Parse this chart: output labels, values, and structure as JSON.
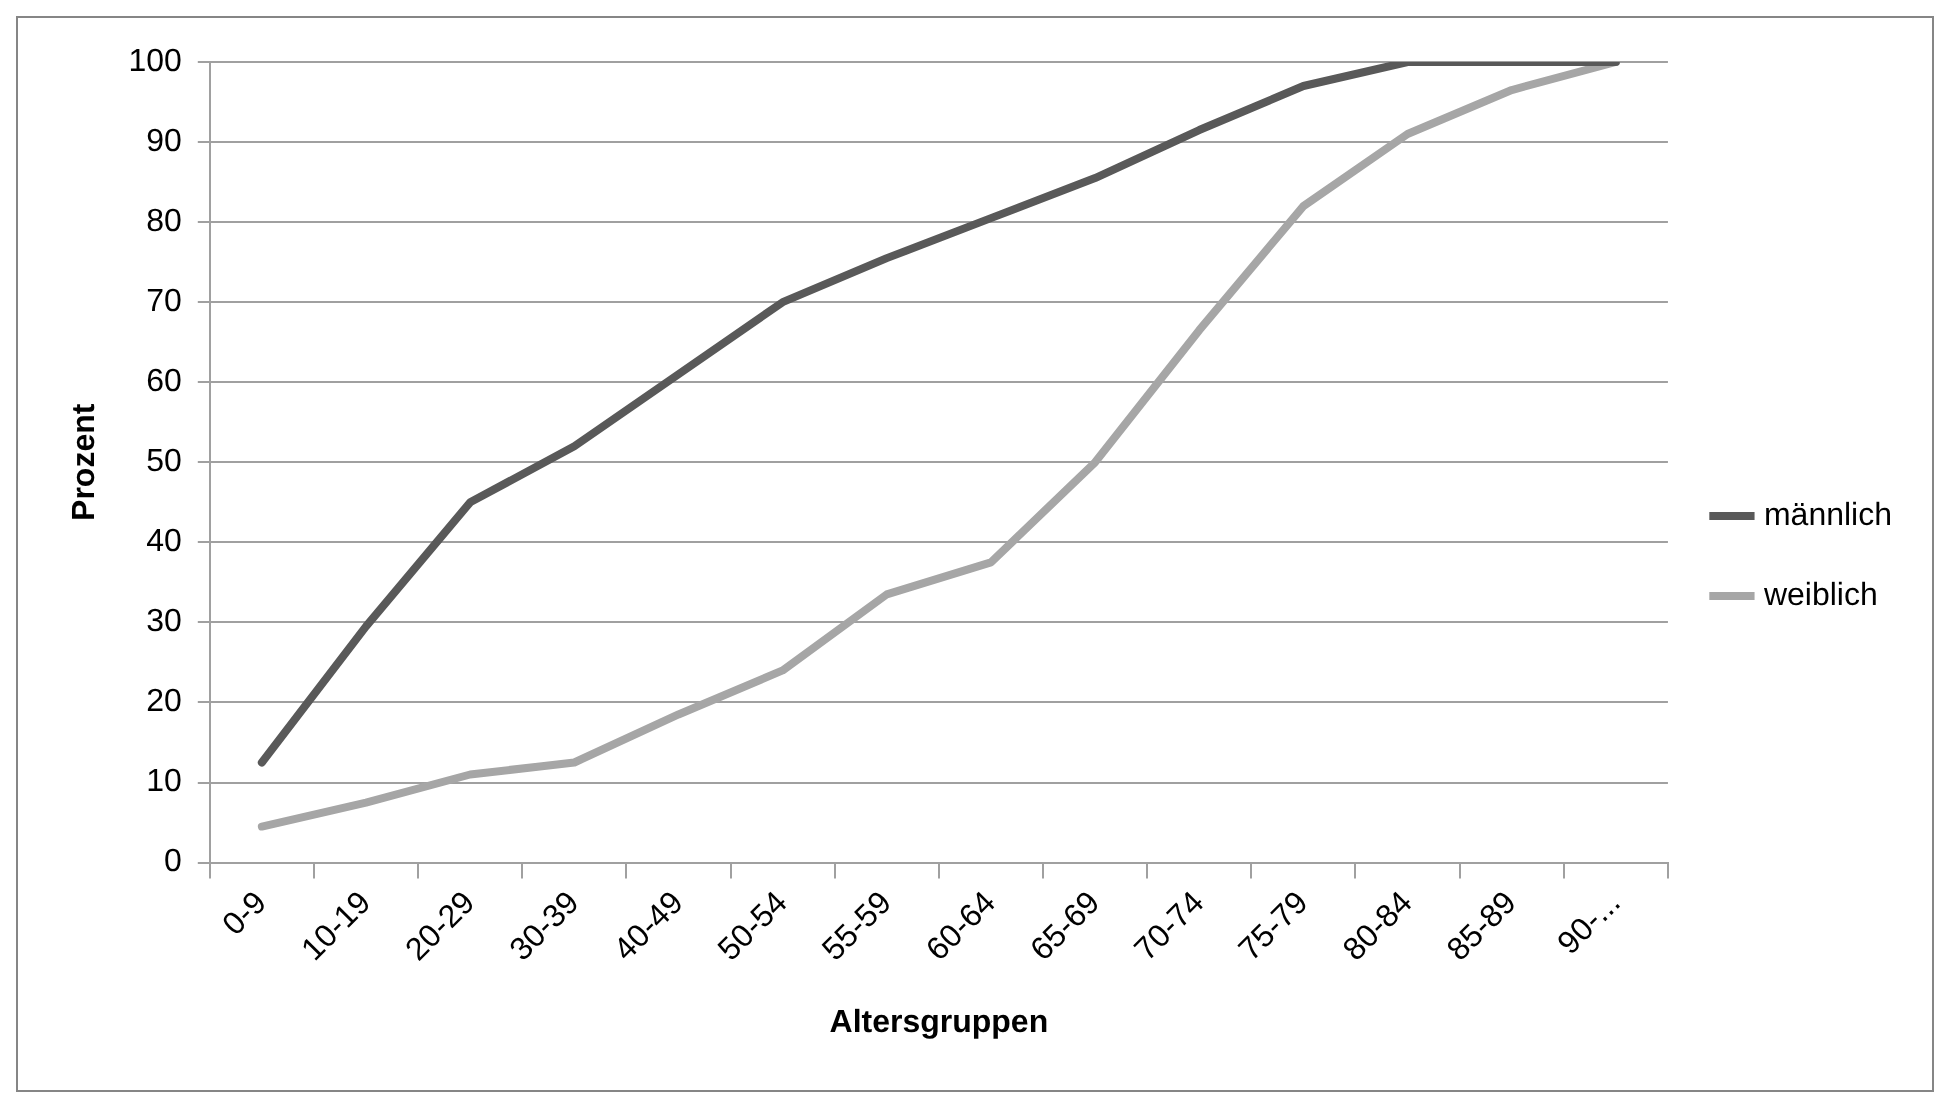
{
  "chart_data": {
    "type": "line",
    "xlabel": "Altersgruppen",
    "ylabel": "Prozent",
    "categories": [
      "0-9",
      "10-19",
      "20-29",
      "30-39",
      "40-49",
      "50-54",
      "55-59",
      "60-64",
      "65-69",
      "70-74",
      "75-79",
      "80-84",
      "85-89",
      "90-..."
    ],
    "series": [
      {
        "name": "männlich",
        "color": "#595959",
        "values": [
          12.5,
          29.5,
          45,
          52,
          61,
          70,
          75.5,
          80.5,
          85.5,
          91.5,
          97,
          100,
          100,
          100
        ]
      },
      {
        "name": "weiblich",
        "color": "#a6a6a6",
        "values": [
          4.5,
          7.5,
          11,
          12.5,
          18.5,
          24,
          33.5,
          37.5,
          50,
          66.5,
          82,
          91,
          96.5,
          100
        ]
      }
    ],
    "ylim": [
      0,
      100
    ],
    "yticks": [
      0,
      10,
      20,
      30,
      40,
      50,
      60,
      70,
      80,
      90,
      100
    ],
    "grid": "y",
    "legend": "right",
    "marker": "none",
    "line_style": "solid"
  }
}
